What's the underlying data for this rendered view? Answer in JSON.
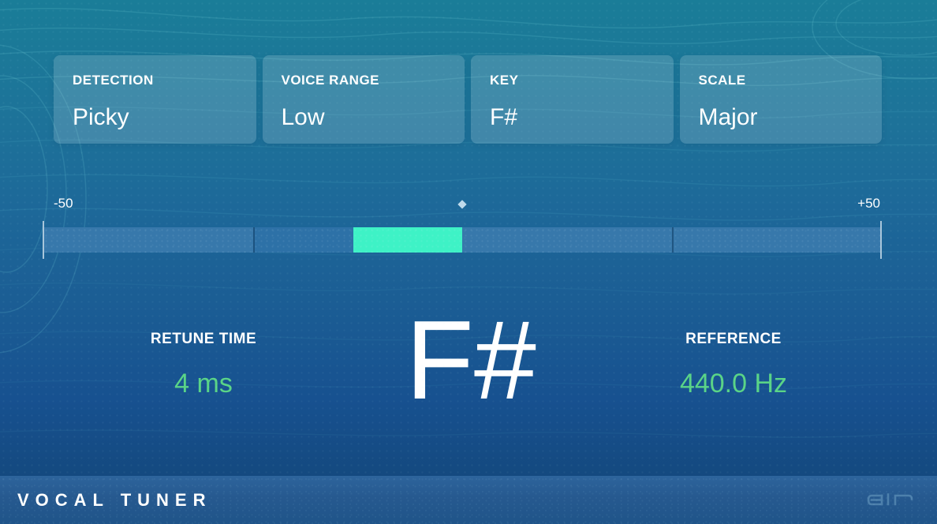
{
  "cards": [
    {
      "label": "DETECTION",
      "value": "Picky"
    },
    {
      "label": "VOICE RANGE",
      "value": "Low"
    },
    {
      "label": "KEY",
      "value": "F#"
    },
    {
      "label": "SCALE",
      "value": "Major"
    }
  ],
  "meter": {
    "min_label": "-50",
    "max_label": "+50",
    "min_cents": -50,
    "max_cents": 50,
    "marker_cents": 0,
    "active_segment_from_cents": -13,
    "active_segment_to_cents": 0
  },
  "readouts": {
    "retune_time_label": "RETUNE TIME",
    "retune_time_value": "4 ms",
    "note": "F#",
    "reference_label": "REFERENCE",
    "reference_value": "440.0 Hz"
  },
  "footer": {
    "title": "VOCAL TUNER",
    "brand": "air"
  },
  "colors": {
    "meter_active": "#3ef2c6",
    "value_green": "#5ad487",
    "background_top": "#1a7d98",
    "background_bottom": "#14487e",
    "footer_bar": "#26598f",
    "card_overlay": "rgba(255,255,255,0.16)"
  }
}
